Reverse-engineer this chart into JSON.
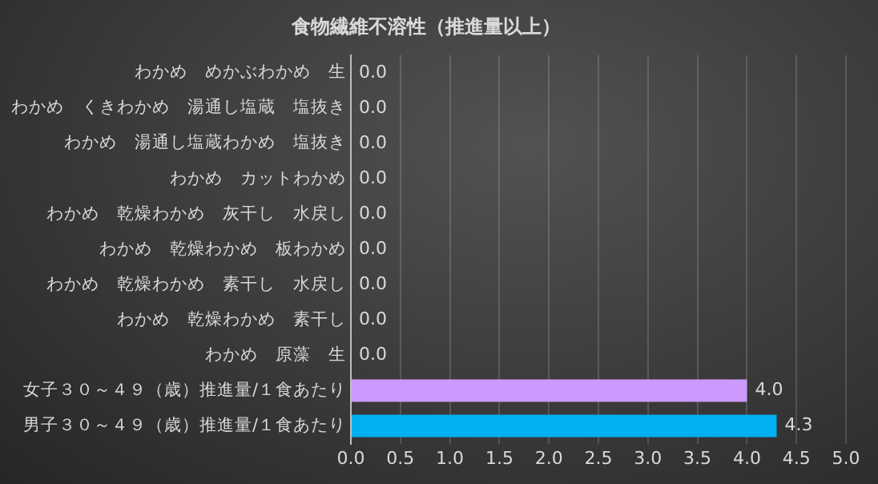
{
  "chart_data": {
    "type": "bar",
    "orientation": "horizontal",
    "title": "食物繊維不溶性（推進量以上）",
    "categories": [
      "わかめ　めかぶわかめ　生",
      "わかめ　くきわかめ　湯通し塩蔵　塩抜き",
      "わかめ　湯通し塩蔵わかめ　塩抜き",
      "わかめ　カットわかめ",
      "わかめ　乾燥わかめ　灰干し　水戻し",
      "わかめ　乾燥わかめ　板わかめ",
      "わかめ　乾燥わかめ　素干し　水戻し",
      "わかめ　乾燥わかめ　素干し",
      "わかめ　原藻　生",
      "女子３０～４９（歳）推進量/１食あたり",
      "男子３０～４９（歳）推進量/１食あたり"
    ],
    "values": [
      0,
      0,
      0,
      0,
      0,
      0,
      0,
      0,
      0,
      4.0,
      4.3
    ],
    "value_labels": [
      "0.0",
      "0.0",
      "0.0",
      "0.0",
      "0.0",
      "0.0",
      "0.0",
      "0.0",
      "0.0",
      "4.0",
      "4.3"
    ],
    "colors": [
      "#7f7f7f",
      "#7f7f7f",
      "#7f7f7f",
      "#7f7f7f",
      "#7f7f7f",
      "#7f7f7f",
      "#7f7f7f",
      "#7f7f7f",
      "#7f7f7f",
      "#cc99ff",
      "#00b0f0"
    ],
    "xlim": [
      0,
      5
    ],
    "xticks": [
      {
        "value": 0,
        "label": "0.0"
      },
      {
        "value": 0.5,
        "label": "0.5"
      },
      {
        "value": 1,
        "label": "1.0"
      },
      {
        "value": 1.5,
        "label": "1.5"
      },
      {
        "value": 2,
        "label": "2.0"
      },
      {
        "value": 2.5,
        "label": "2.5"
      },
      {
        "value": 3,
        "label": "3.0"
      },
      {
        "value": 3.5,
        "label": "3.5"
      },
      {
        "value": 4,
        "label": "4.0"
      },
      {
        "value": 4.5,
        "label": "4.5"
      },
      {
        "value": 5,
        "label": "5.0"
      }
    ],
    "grid": "x"
  }
}
